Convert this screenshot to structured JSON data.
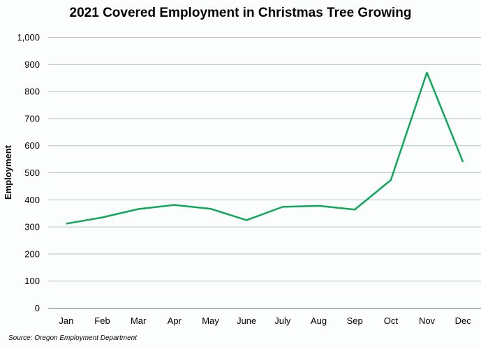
{
  "chart_data": {
    "type": "line",
    "title": "2021 Covered Employment in Christmas Tree Growing",
    "xlabel": "",
    "ylabel": "Employment",
    "categories": [
      "Jan",
      "Feb",
      "Mar",
      "Apr",
      "May",
      "June",
      "July",
      "Aug",
      "Sep",
      "Oct",
      "Nov",
      "Dec"
    ],
    "series": [
      {
        "values": [
          312,
          335,
          366,
          381,
          367,
          325,
          374,
          378,
          364,
          473,
          870,
          540
        ],
        "color": "#0ea85a"
      }
    ],
    "ylim": [
      0,
      1000
    ],
    "yticks": [
      0,
      100,
      200,
      300,
      400,
      500,
      600,
      700,
      800,
      900,
      1000
    ],
    "ytick_labels": [
      "0",
      "100",
      "200",
      "300",
      "400",
      "500",
      "600",
      "700",
      "800",
      "900",
      "1,000"
    ],
    "grid": true,
    "legend": "none",
    "source": "Source: Oregon Employment Department"
  }
}
